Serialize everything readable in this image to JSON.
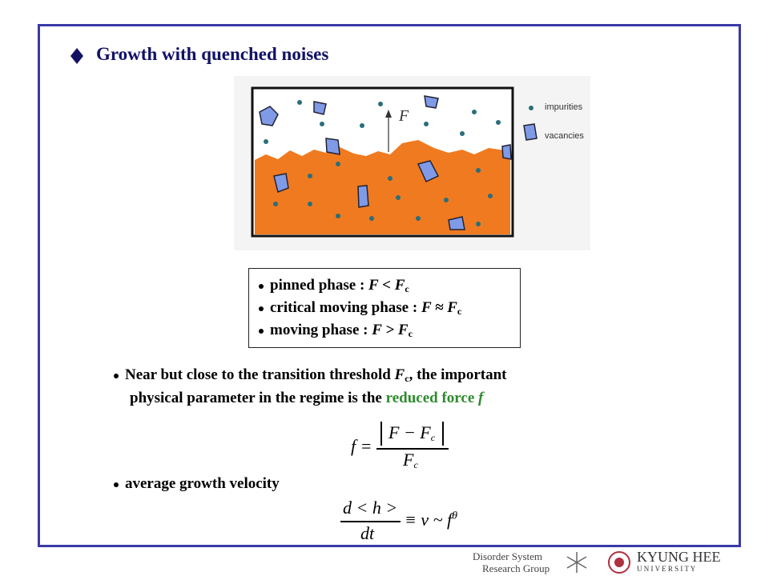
{
  "title": "Growth with quenched noises",
  "figure": {
    "force_label": "F",
    "legend": [
      "impurities",
      "vacancies"
    ]
  },
  "phases": [
    {
      "label": "pinned phase :",
      "relation": "F < F",
      "sub": "c"
    },
    {
      "label": "critical moving phase :",
      "relation": "F ≈ F",
      "sub": "c"
    },
    {
      "label": "moving phase :",
      "relation": "F > F",
      "sub": "c"
    }
  ],
  "paragraph": {
    "line1_start": "Near but close to the transition threshold",
    "symbol": "F",
    "sub": "c",
    "line1_end": ", the important",
    "line2_start": "physical parameter in the regime is the",
    "highlight": "reduced force",
    "highlight_symbol": "f"
  },
  "formula1": {
    "lhs": "f =",
    "numerator": "F − F",
    "num_sub": "c",
    "denominator": "F",
    "den_sub": "c"
  },
  "velocity": {
    "text": "average growth velocity"
  },
  "formula2": {
    "numerator": "d < h >",
    "denominator": "dt",
    "rhs": "≡ v ~ f",
    "exponent": "θ"
  },
  "logos": {
    "group_line1": "Disorder System",
    "group_line2": "Research Group",
    "university_line1": "KYUNG HEE",
    "university_line2": "U N I V E R S I T Y"
  }
}
